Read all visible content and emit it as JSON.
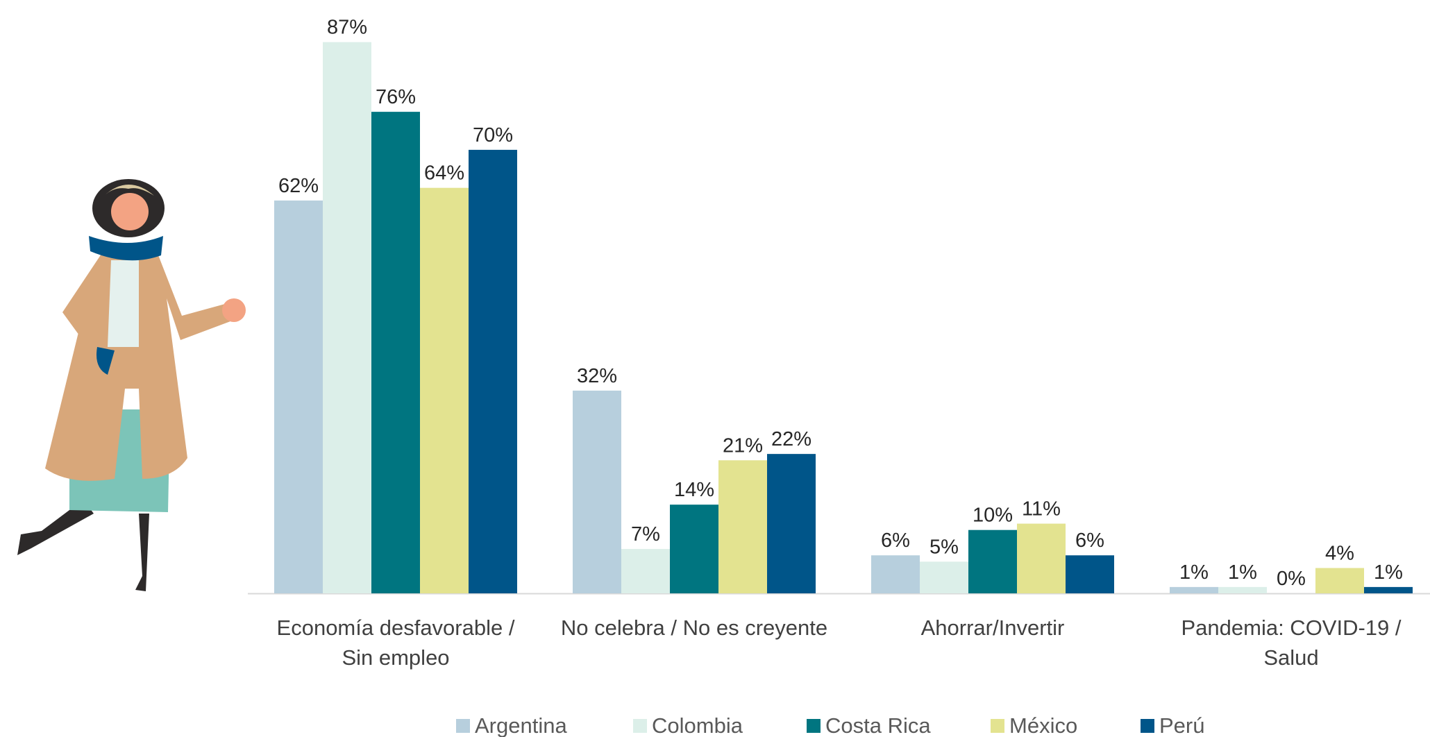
{
  "chart_data": {
    "type": "bar",
    "categories": [
      "Economía desfavorable /\nSin empleo",
      "No celebra / No es creyente",
      "Ahorrar/Invertir",
      "Pandemia: COVID-19 /\nSalud"
    ],
    "series": [
      {
        "name": "Argentina",
        "color": "#b7cfdd",
        "values": [
          62,
          32,
          6,
          1
        ],
        "value_labels": [
          "62%",
          "32%",
          "6%",
          "1%"
        ]
      },
      {
        "name": "Colombia",
        "color": "#dcefe9",
        "values": [
          87,
          7,
          5,
          1
        ],
        "value_labels": [
          "87%",
          "7%",
          "5%",
          "1%"
        ]
      },
      {
        "name": "Costa Rica",
        "color": "#007580",
        "values": [
          76,
          14,
          10,
          0
        ],
        "value_labels": [
          "76%",
          "14%",
          "10%",
          "0%"
        ]
      },
      {
        "name": "México",
        "color": "#e3e390",
        "values": [
          64,
          21,
          11,
          4
        ],
        "value_labels": [
          "64%",
          "21%",
          "11%",
          "4%"
        ]
      },
      {
        "name": "Perú",
        "color": "#005589",
        "values": [
          70,
          22,
          6,
          1
        ],
        "value_labels": [
          "70%",
          "22%",
          "6%",
          "1%"
        ]
      }
    ]
  }
}
